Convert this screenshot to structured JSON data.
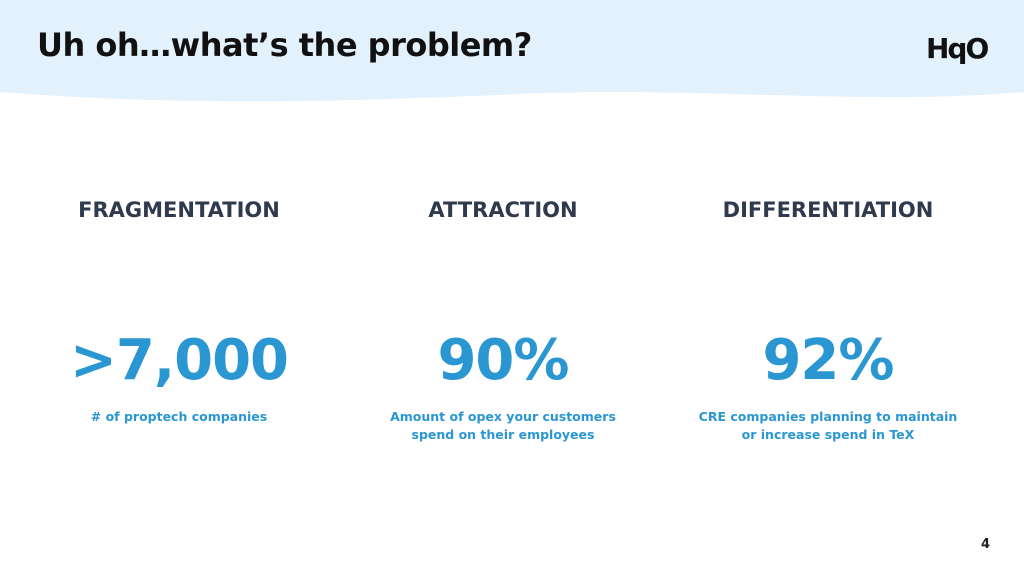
{
  "header": {
    "title": "Uh oh…what’s the problem?",
    "logo": "HqO"
  },
  "columns": [
    {
      "heading": "FRAGMENTATION",
      "stat": ">7,000",
      "caption": [
        "# of proptech companies"
      ]
    },
    {
      "heading": "ATTRACTION",
      "stat": "90%",
      "caption": [
        "Amount of opex your customers",
        "spend on their employees"
      ]
    },
    {
      "heading": "DIFFERENTIATION",
      "stat": "92%",
      "caption": [
        "CRE companies planning to maintain",
        "or increase spend in TeX"
      ]
    }
  ],
  "footer": {
    "page_number": "4"
  }
}
